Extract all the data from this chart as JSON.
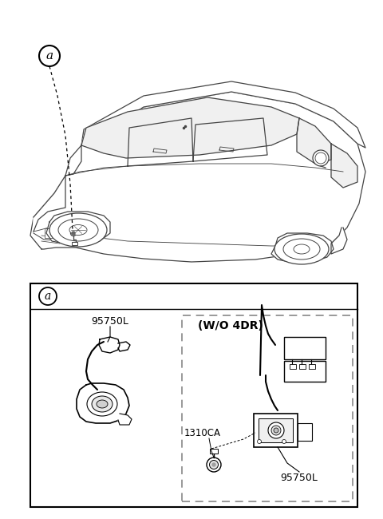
{
  "bg_color": "#ffffff",
  "car_line_color": "#444444",
  "part1_label": "95750L",
  "part2_label": "(W/O 4DR)",
  "part3_label": "1310CA",
  "part4_label": "95750L",
  "circle_label": "a",
  "fig_width": 4.8,
  "fig_height": 6.5,
  "dpi": 100
}
